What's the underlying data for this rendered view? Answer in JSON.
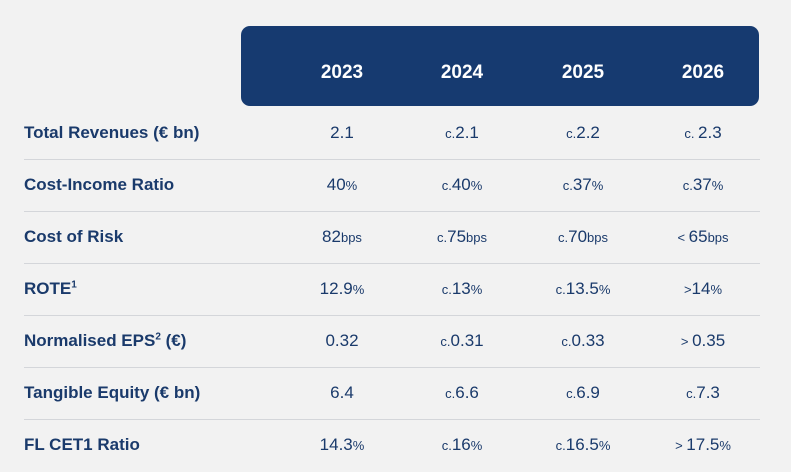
{
  "header": {
    "years": [
      "2023",
      "2024",
      "2025",
      "2026"
    ]
  },
  "rows": [
    {
      "label": "Total Revenues (€ bn)",
      "sup": "",
      "label_suffix": "",
      "cells": [
        {
          "pre": "",
          "val": "2.1",
          "suf": ""
        },
        {
          "pre": "c.",
          "val": "2.1",
          "suf": ""
        },
        {
          "pre": "c.",
          "val": "2.2",
          "suf": ""
        },
        {
          "pre": "c. ",
          "val": "2.3",
          "suf": ""
        }
      ]
    },
    {
      "label": "Cost-Income Ratio",
      "sup": "",
      "label_suffix": "",
      "cells": [
        {
          "pre": "",
          "val": "40",
          "suf": "%"
        },
        {
          "pre": "c.",
          "val": "40",
          "suf": "%"
        },
        {
          "pre": "c.",
          "val": "37",
          "suf": "%"
        },
        {
          "pre": "c.",
          "val": "37",
          "suf": "%"
        }
      ]
    },
    {
      "label": "Cost of Risk",
      "sup": "",
      "label_suffix": "",
      "cells": [
        {
          "pre": "",
          "val": "82",
          "suf": "bps"
        },
        {
          "pre": "c.",
          "val": "75",
          "suf": "bps"
        },
        {
          "pre": "c.",
          "val": "70",
          "suf": "bps"
        },
        {
          "pre": "< ",
          "val": "65",
          "suf": "bps"
        }
      ]
    },
    {
      "label": "ROTE",
      "sup": "1",
      "label_suffix": "",
      "cells": [
        {
          "pre": "",
          "val": "12.9",
          "suf": "%"
        },
        {
          "pre": "c.",
          "val": "13",
          "suf": "%"
        },
        {
          "pre": "c.",
          "val": "13.5",
          "suf": "%"
        },
        {
          "pre": ">",
          "val": "14",
          "suf": "%"
        }
      ]
    },
    {
      "label": "Normalised EPS",
      "sup": "2",
      "label_suffix": " (€)",
      "cells": [
        {
          "pre": "",
          "val": "0.32",
          "suf": ""
        },
        {
          "pre": "c.",
          "val": "0.31",
          "suf": ""
        },
        {
          "pre": "c.",
          "val": "0.33",
          "suf": ""
        },
        {
          "pre": "> ",
          "val": "0.35",
          "suf": ""
        }
      ]
    },
    {
      "label": "Tangible Equity (€ bn)",
      "sup": "",
      "label_suffix": "",
      "cells": [
        {
          "pre": "",
          "val": "6.4",
          "suf": ""
        },
        {
          "pre": "c.",
          "val": "6.6",
          "suf": ""
        },
        {
          "pre": "c.",
          "val": "6.9",
          "suf": ""
        },
        {
          "pre": "c.",
          "val": "7.3",
          "suf": ""
        }
      ]
    },
    {
      "label": "FL CET1 Ratio",
      "sup": "",
      "label_suffix": "",
      "cells": [
        {
          "pre": "",
          "val": "14.3",
          "suf": "%"
        },
        {
          "pre": "c.",
          "val": "16",
          "suf": "%"
        },
        {
          "pre": "c.",
          "val": "16.5",
          "suf": "%"
        },
        {
          "pre": "> ",
          "val": "17.5",
          "suf": "%"
        }
      ]
    }
  ]
}
